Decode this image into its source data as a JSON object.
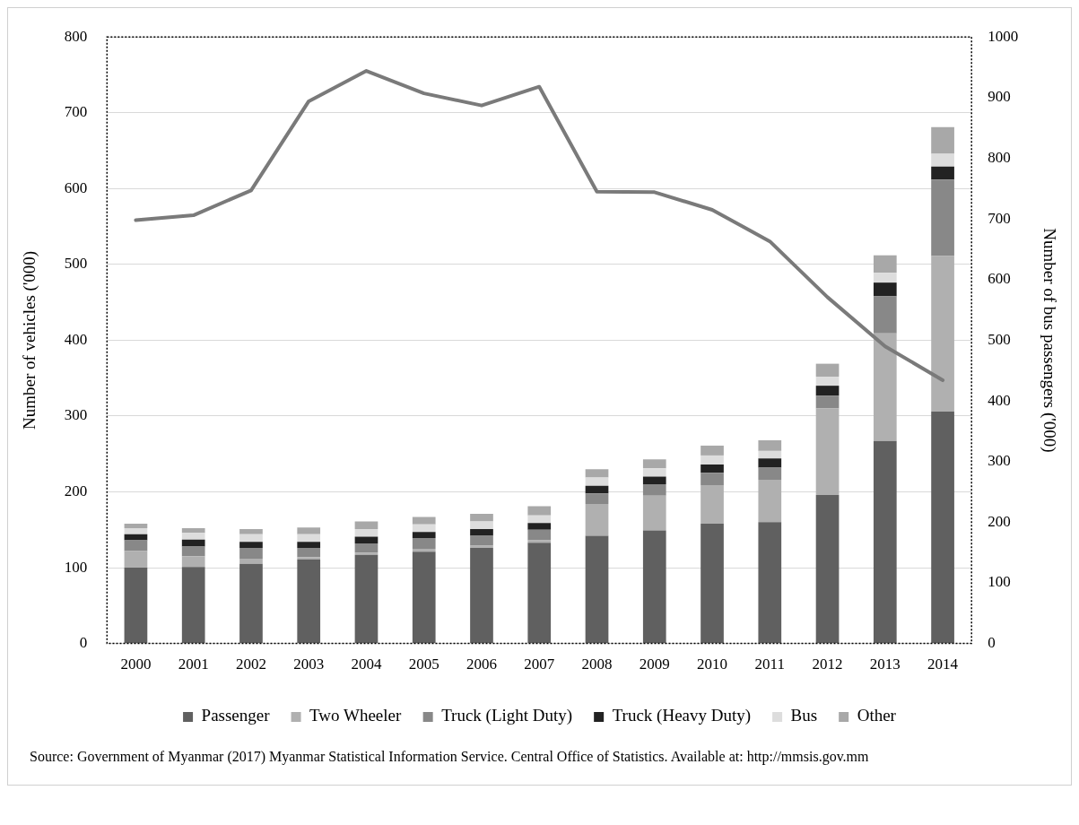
{
  "chart_data": {
    "type": "bar",
    "stacked": true,
    "ylabel": "Number of vehicles ('000)",
    "y2label": "Number of bus passengers ('000)",
    "categories": [
      "2000",
      "2001",
      "2002",
      "2003",
      "2004",
      "2005",
      "2006",
      "2007",
      "2008",
      "2009",
      "2010",
      "2011",
      "2012",
      "2013",
      "2014"
    ],
    "series": [
      {
        "name": "Passenger",
        "color": "#606060",
        "values": [
          100,
          101,
          105,
          111,
          117,
          121,
          126,
          133,
          142,
          149,
          158,
          160,
          196,
          267,
          306
        ]
      },
      {
        "name": "Two Wheeler",
        "color": "#b0b0b0",
        "values": [
          22,
          14,
          7,
          3,
          3,
          4,
          3,
          3,
          42,
          46,
          51,
          56,
          114,
          142,
          205
        ]
      },
      {
        "name": "Truck (Light Duty)",
        "color": "#888888",
        "values": [
          14,
          13,
          14,
          12,
          12,
          14,
          13,
          14,
          14,
          15,
          16,
          16,
          17,
          49,
          101
        ]
      },
      {
        "name": "Truck (Heavy Duty)",
        "color": "#222222",
        "values": [
          8,
          9,
          8,
          8,
          9,
          8,
          9,
          9,
          10,
          10,
          11,
          12,
          13,
          18,
          17
        ]
      },
      {
        "name": "Bus",
        "color": "#dddddd",
        "values": [
          8,
          9,
          10,
          10,
          10,
          10,
          10,
          10,
          11,
          11,
          12,
          10,
          12,
          13,
          17
        ]
      },
      {
        "name": "Other",
        "color": "#a8a8a8",
        "values": [
          6,
          6,
          7,
          9,
          10,
          10,
          10,
          12,
          11,
          12,
          13,
          14,
          17,
          23,
          35
        ]
      },
      {
        "type": "line",
        "axis": "y2",
        "color": "#7a7a7a",
        "values": [
          698,
          706,
          747,
          894,
          944,
          907,
          887,
          918,
          745,
          744,
          715,
          663,
          571,
          490,
          434
        ]
      }
    ],
    "ylim": [
      0,
      800
    ],
    "yticks": [
      0,
      100,
      200,
      300,
      400,
      500,
      600,
      700,
      800
    ],
    "y2lim": [
      0,
      1000
    ],
    "y2ticks": [
      0,
      100,
      200,
      300,
      400,
      500,
      600,
      700,
      800,
      900,
      1000
    ],
    "grid": "y",
    "legend": "bottom",
    "marker": "none",
    "line_style": "solid",
    "annotations": [
      "Source: Government of Myanmar (2017) Myanmar Statistical Information Service. Central Office of Statistics. Available at: http://mmsis.gov.mm"
    ]
  }
}
